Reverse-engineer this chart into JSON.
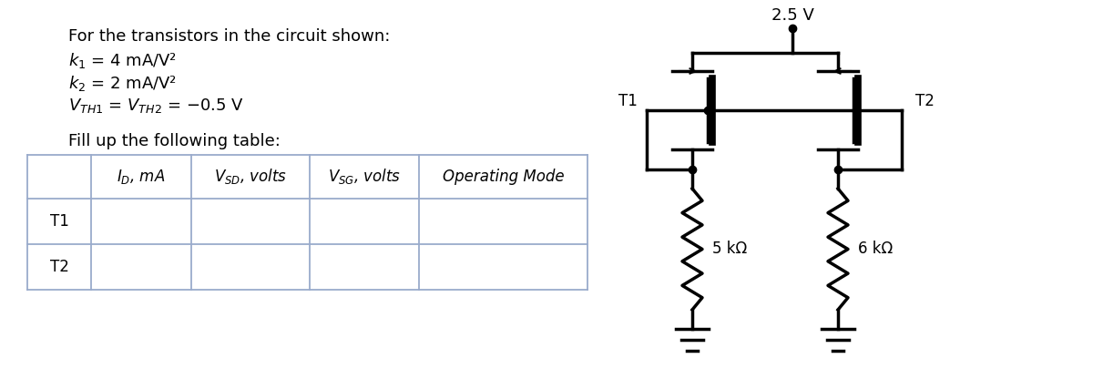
{
  "bg_color": "#ffffff",
  "text_color": "#000000",
  "title_line": "For the transistors in the circuit shown:",
  "param1": "$k_1$ = 4 mA/V²",
  "param2": "$k_2$ = 2 mA/V²",
  "param3": "$V_{TH1}$ = $V_{TH2}$ = −0.5 V",
  "fill_text": "Fill up the following table:",
  "table_header": [
    "",
    "$I_D$, mA",
    "$V_{SD}$, volts",
    "$V_{SG}$, volts",
    "Operating Mode"
  ],
  "table_rows": [
    [
      "T1",
      "",
      "",
      "",
      ""
    ],
    [
      "T2",
      "",
      "",
      "",
      ""
    ]
  ],
  "supply_voltage": "2.5 V",
  "R1_label": "5 kΩ",
  "R2_label": "6 kΩ",
  "T1_label": "T1",
  "T2_label": "T2"
}
